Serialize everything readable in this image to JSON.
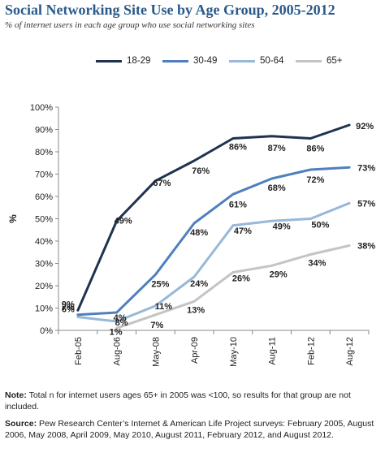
{
  "title": "Social Networking Site Use by Age Group, 2005-2012",
  "subtitle": "% of internet users in each age group who use social networking sites",
  "note": {
    "label": "Note:",
    "text": " Total n for internet users ages 65+ in 2005 was <100, so results for that group are not included."
  },
  "source": {
    "label": "Source:",
    "text": " Pew Research Center’s Internet & American Life Project surveys: February 2005, August 2006, May 2008, April 2009, May 2010, August 2011, February 2012, and August 2012."
  },
  "chart_data": {
    "type": "line",
    "ylabel": "%",
    "ylim": [
      0,
      100
    ],
    "yticks": [
      "0%",
      "10%",
      "20%",
      "30%",
      "40%",
      "50%",
      "60%",
      "70%",
      "80%",
      "90%",
      "100%"
    ],
    "categories": [
      "Feb-05",
      "Aug-06",
      "May-08",
      "Apr-09",
      "May-10",
      "Aug-11",
      "Feb-12",
      "Aug-12"
    ],
    "legend_position": "top",
    "grid": false,
    "series": [
      {
        "name": "18-29",
        "color": "#1f3350",
        "values": [
          9,
          49,
          67,
          76,
          86,
          87,
          86,
          92
        ],
        "labels": [
          "9%",
          "49%",
          "67%",
          "76%",
          "86%",
          "87%",
          "86%",
          "92%"
        ]
      },
      {
        "name": "30-49",
        "color": "#4f7fbf",
        "values": [
          7,
          8,
          25,
          48,
          61,
          68,
          72,
          73
        ],
        "labels": [
          "7%",
          "8%",
          "25%",
          "48%",
          "61%",
          "68%",
          "72%",
          "73%"
        ]
      },
      {
        "name": "50-64",
        "color": "#98b8d8",
        "values": [
          6,
          4,
          11,
          24,
          47,
          49,
          50,
          57
        ],
        "labels": [
          "6%",
          "4%",
          "11%",
          "24%",
          "47%",
          "49%",
          "50%",
          "57%"
        ]
      },
      {
        "name": "65+",
        "color": "#c4c4c4",
        "values": [
          null,
          1,
          7,
          13,
          26,
          29,
          34,
          38
        ],
        "labels": [
          "",
          "1%",
          "7%",
          "13%",
          "26%",
          "29%",
          "34%",
          "38%"
        ]
      }
    ]
  }
}
